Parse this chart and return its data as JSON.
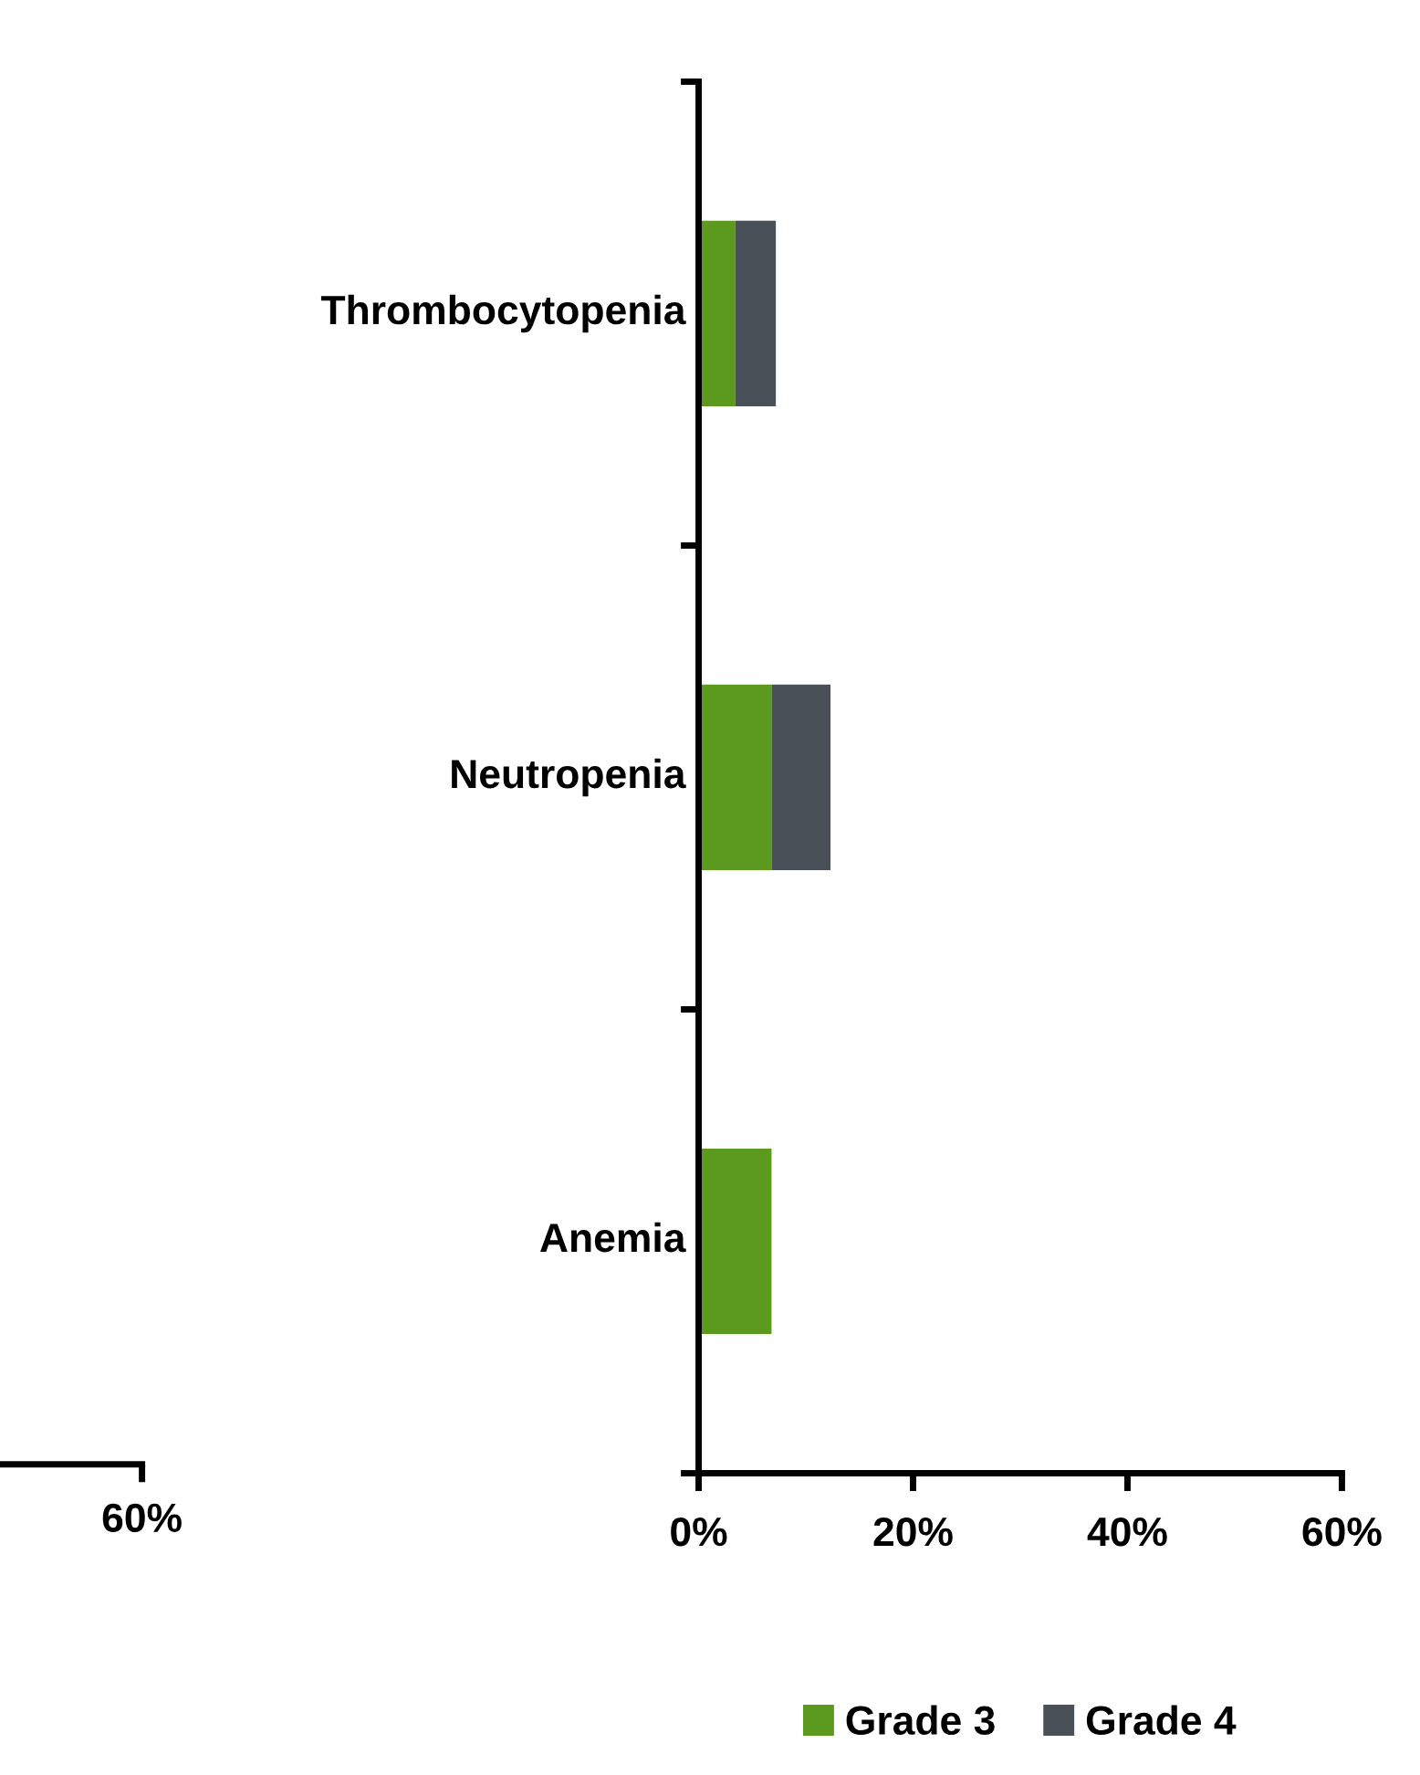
{
  "chart_data": [
    {
      "type": "other",
      "annotations": [
        "60%"
      ]
    },
    {
      "type": "bar",
      "orientation": "horizontal",
      "stacked": true,
      "categories": [
        "Thrombocytopenia",
        "Neutropenia",
        "Anemia"
      ],
      "series": [
        {
          "name": "Grade 3",
          "color": "#5b9a1f",
          "values": [
            3.4,
            6.8,
            6.8
          ]
        },
        {
          "name": "Grade 4",
          "color": "#4a5058",
          "values": [
            3.8,
            5.5,
            null
          ]
        }
      ],
      "xlim": [
        0,
        60
      ],
      "xticks": [
        {
          "value": 0,
          "label": "0%"
        },
        {
          "value": 20,
          "label": "20%"
        },
        {
          "value": 40,
          "label": "40%"
        },
        {
          "value": 60,
          "label": "60%"
        }
      ],
      "legend": "bottom"
    }
  ]
}
